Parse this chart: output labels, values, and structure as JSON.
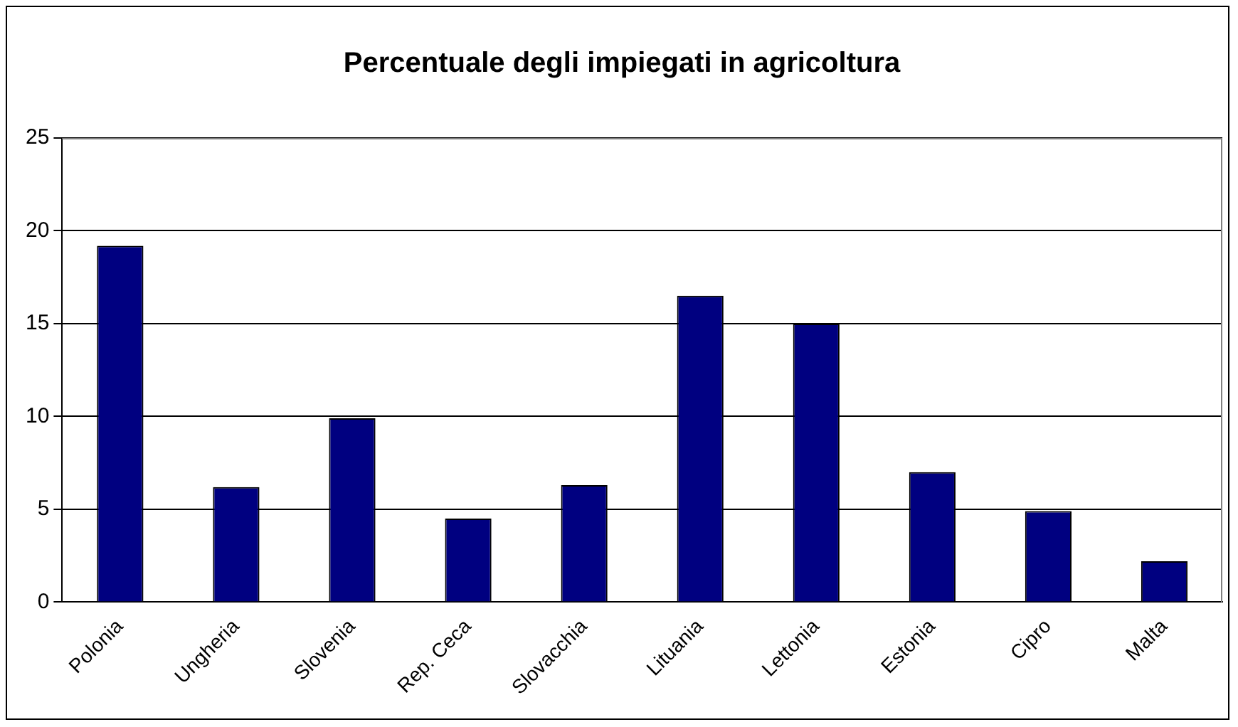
{
  "chart_data": {
    "type": "bar",
    "title": "Percentuale degli impiegati in agricoltura",
    "categories": [
      "Polonia",
      "Ungheria",
      "Slovenia",
      "Rep. Ceca",
      "Slovacchia",
      "Lituania",
      "Lettonia",
      "Estonia",
      "Cipro",
      "Malta"
    ],
    "values": [
      19.2,
      6.2,
      9.9,
      4.5,
      6.3,
      16.5,
      15.0,
      7.0,
      4.9,
      2.2
    ],
    "color": "#000080",
    "ylim": [
      0,
      25
    ],
    "yticks": [
      0,
      5,
      10,
      15,
      20,
      25
    ],
    "grid": "y",
    "legend": false
  }
}
